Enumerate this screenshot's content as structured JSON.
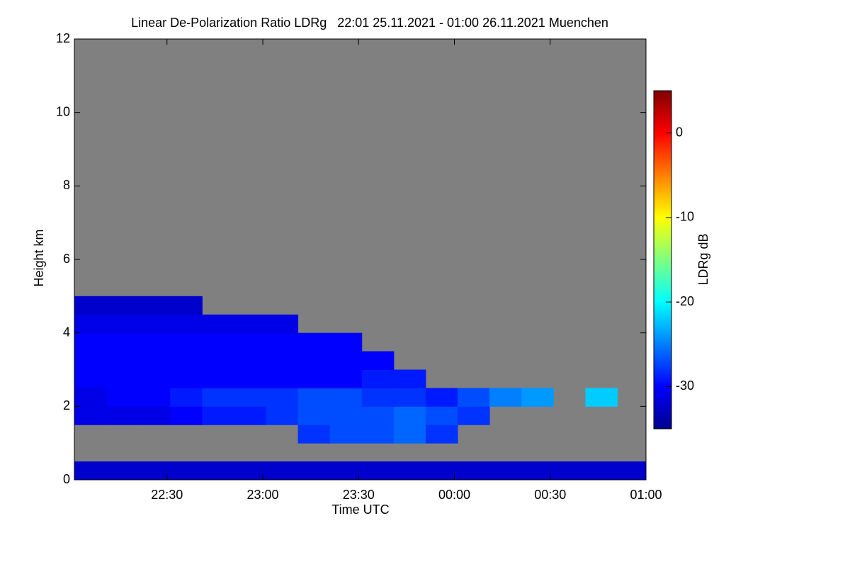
{
  "chart_data": {
    "type": "heatmap",
    "title": "Linear De-Polarization Ratio LDRg   22:01 25.11.2021 - 01:00 26.11.2021 Muenchen",
    "xlabel": "Time UTC",
    "ylabel": "Height km",
    "colorbar_label": "LDRg dB",
    "background_color": "#808080",
    "xlim": [
      1,
      180
    ],
    "xticks": [
      {
        "value": 30,
        "label": "22:30"
      },
      {
        "value": 60,
        "label": "23:00"
      },
      {
        "value": 90,
        "label": "23:30"
      },
      {
        "value": 120,
        "label": "00:00"
      },
      {
        "value": 150,
        "label": "00:30"
      },
      {
        "value": 180,
        "label": "01:00"
      }
    ],
    "ylim": [
      0,
      12
    ],
    "yticks": [
      0,
      2,
      4,
      6,
      8,
      10,
      12
    ],
    "clim": [
      -35,
      5
    ],
    "cticks": [
      0,
      -10,
      -20,
      -30
    ],
    "x_edges": [
      1,
      11,
      21,
      31,
      41,
      51,
      61,
      71,
      81,
      91,
      101,
      111,
      121,
      131,
      141,
      151,
      161,
      171,
      180
    ],
    "y_edges": [
      0,
      0.5,
      1,
      1.5,
      2,
      2.5,
      3,
      3.5,
      4,
      4.5,
      5
    ],
    "values": [
      [
        -32,
        -32,
        -32,
        -32,
        -32,
        -32,
        -32,
        -32,
        -32,
        -32,
        -32,
        -32,
        -32,
        -32,
        -32,
        -32,
        -32,
        -32
      ],
      [
        null,
        null,
        null,
        null,
        null,
        null,
        null,
        null,
        null,
        null,
        null,
        null,
        null,
        null,
        null,
        null,
        null,
        null
      ],
      [
        null,
        null,
        null,
        null,
        null,
        null,
        null,
        -28,
        -27,
        -27,
        -26,
        -28,
        null,
        null,
        null,
        null,
        null,
        null
      ],
      [
        -31,
        -31,
        -31,
        -30,
        -29,
        -29,
        -28,
        -27,
        -27,
        -27,
        -26,
        -27,
        -28,
        null,
        null,
        null,
        null,
        null
      ],
      [
        -31,
        -30,
        -30,
        -29,
        -28,
        -28,
        -28,
        -27,
        -27,
        -28,
        -28,
        -29,
        -27,
        -25,
        -24,
        null,
        -22,
        null
      ],
      [
        -30,
        -30,
        -30,
        -30,
        -30,
        -30,
        -30,
        -30,
        -30,
        -29,
        -29,
        null,
        null,
        null,
        null,
        null,
        null,
        null
      ],
      [
        -30,
        -30,
        -30,
        -30,
        -30,
        -30,
        -30,
        -30,
        -30,
        -30,
        null,
        null,
        null,
        null,
        null,
        null,
        null,
        null
      ],
      [
        -30,
        -30,
        -30,
        -30,
        -30,
        -30,
        -30,
        -30,
        -30,
        null,
        null,
        null,
        null,
        null,
        null,
        null,
        null,
        null
      ],
      [
        -31,
        -31,
        -31,
        -31,
        -31,
        -31,
        -31,
        null,
        null,
        null,
        null,
        null,
        null,
        null,
        null,
        null,
        null,
        null
      ],
      [
        -32,
        -32,
        -32,
        -32,
        null,
        null,
        null,
        null,
        null,
        null,
        null,
        null,
        null,
        null,
        null,
        null,
        null,
        null
      ]
    ]
  }
}
